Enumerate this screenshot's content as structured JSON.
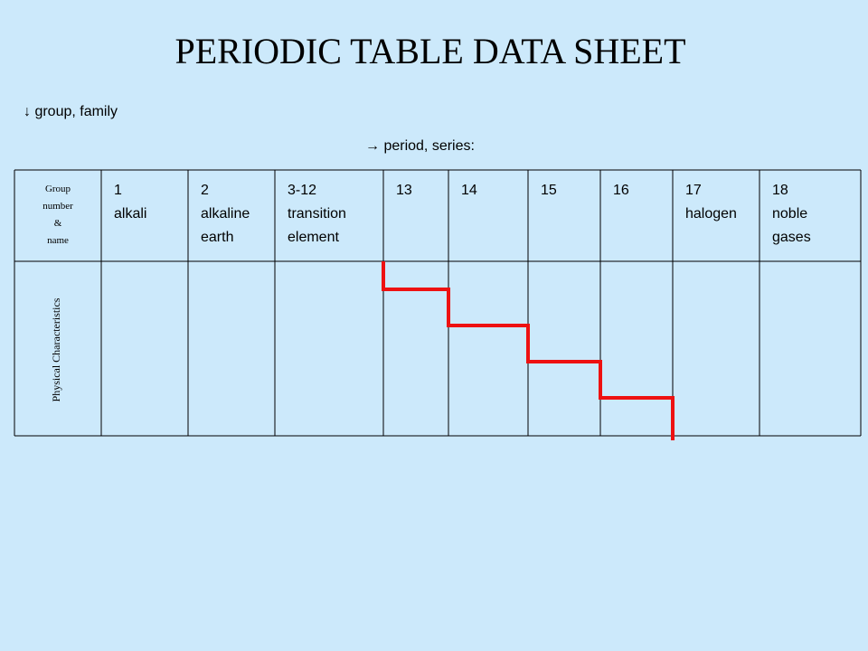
{
  "title": "PERIODIC TABLE DATA SHEET",
  "notes": [
    "↓ group, family",
    "→ period, series:"
  ],
  "table": {
    "header": [
      [
        "Group",
        "number",
        "&",
        "name"
      ],
      [
        "1",
        "alkali"
      ],
      [
        "2",
        "alkaline",
        "earth"
      ],
      [
        "3-12",
        "transition",
        "element"
      ],
      [
        "13"
      ],
      [
        "14"
      ],
      [
        "15"
      ],
      [
        "16"
      ],
      [
        "17",
        "halogen"
      ],
      [
        "18",
        "noble",
        "gases"
      ]
    ],
    "rows": [
      [
        "Physical Characteristics"
      ]
    ]
  }
}
